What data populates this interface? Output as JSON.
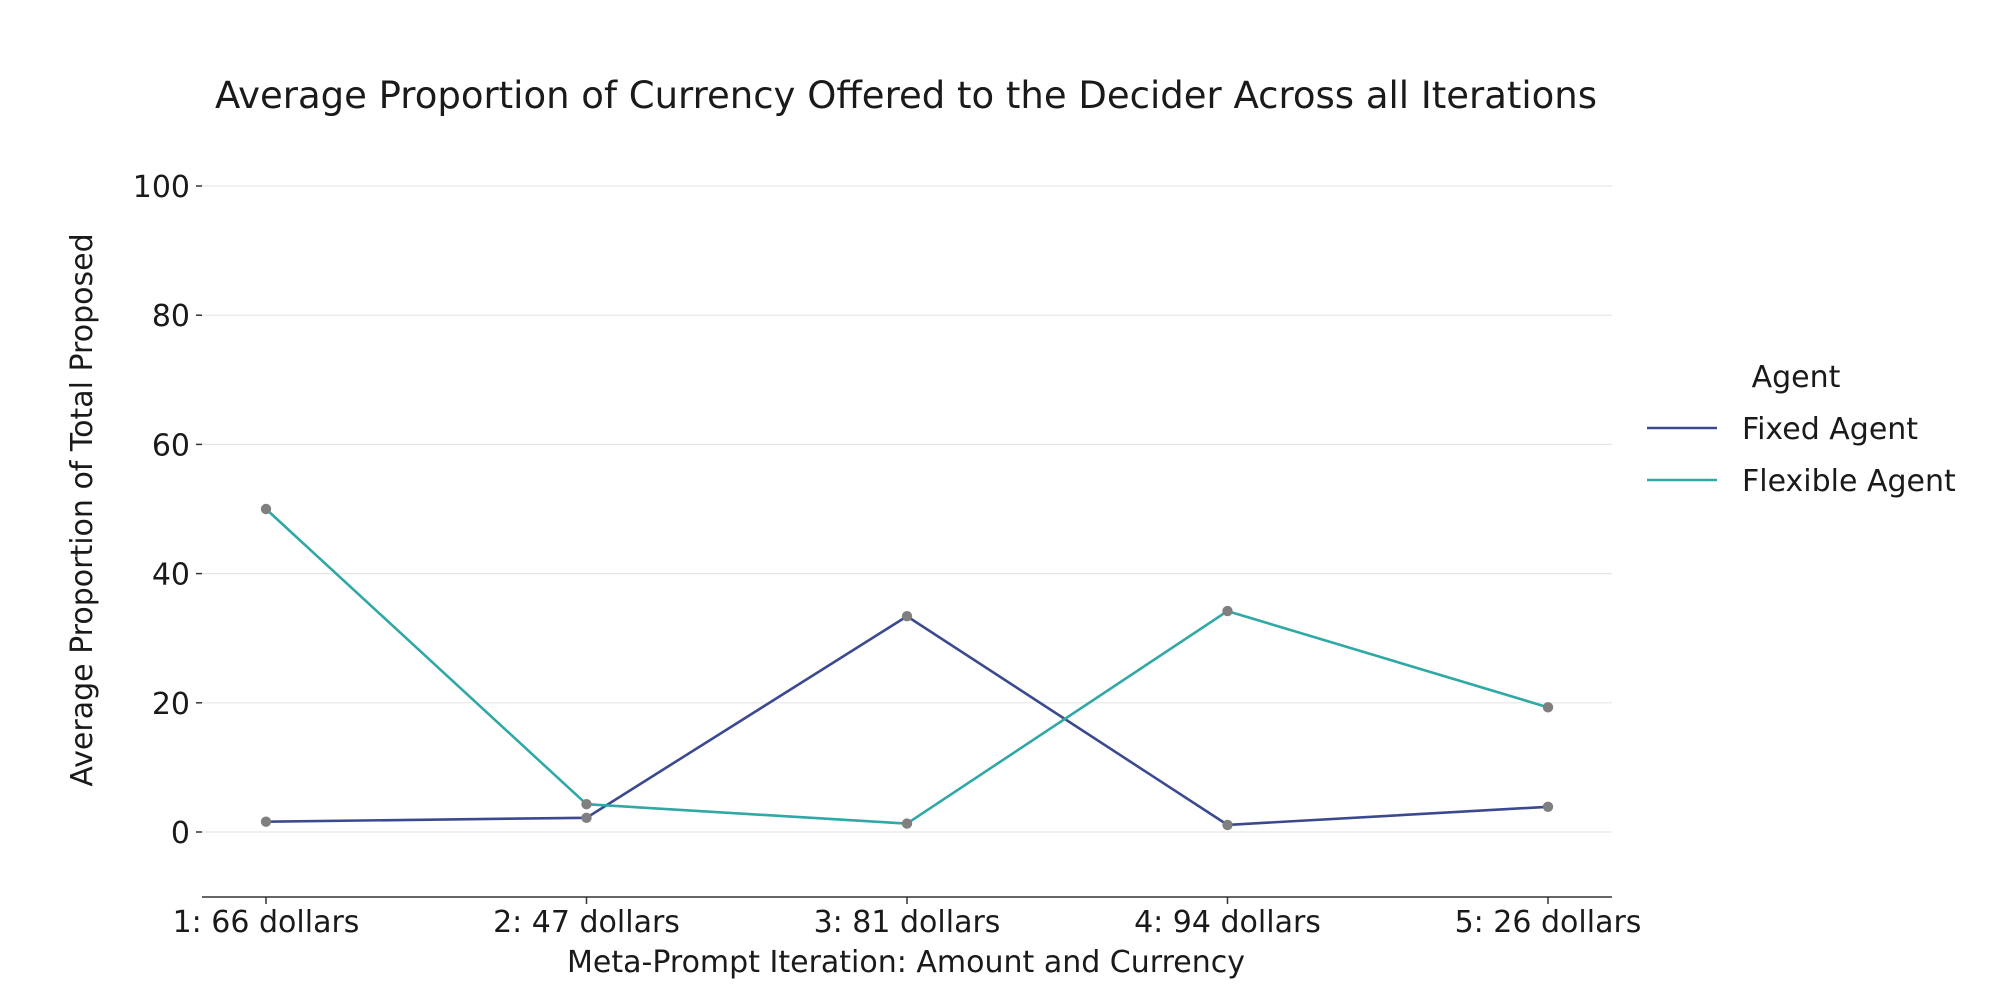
{
  "chart_data": {
    "type": "line",
    "title": "Average Proportion of Currency Offered to the Decider Across all Iterations",
    "xlabel": "Meta-Prompt Iteration: Amount and Currency",
    "ylabel": "Average Proportion of Total Proposed",
    "categories": [
      "1: 66 dollars",
      "2: 47 dollars",
      "3: 81 dollars",
      "4: 94 dollars",
      "5: 26 dollars"
    ],
    "ylim": [
      -10,
      100
    ],
    "yticks": [
      0,
      20,
      40,
      60,
      80,
      100
    ],
    "grid": true,
    "legend": {
      "title": "Agent",
      "placement": "right"
    },
    "marker_color": "#7f7f7f",
    "series": [
      {
        "name": "Fixed Agent",
        "color": "#3b4a8f",
        "values": [
          1.6,
          2.2,
          33.4,
          1.1,
          3.9
        ]
      },
      {
        "name": "Flexible Agent",
        "color": "#2fa8a6",
        "values": [
          50.0,
          4.3,
          1.3,
          34.2,
          19.3
        ]
      }
    ]
  }
}
